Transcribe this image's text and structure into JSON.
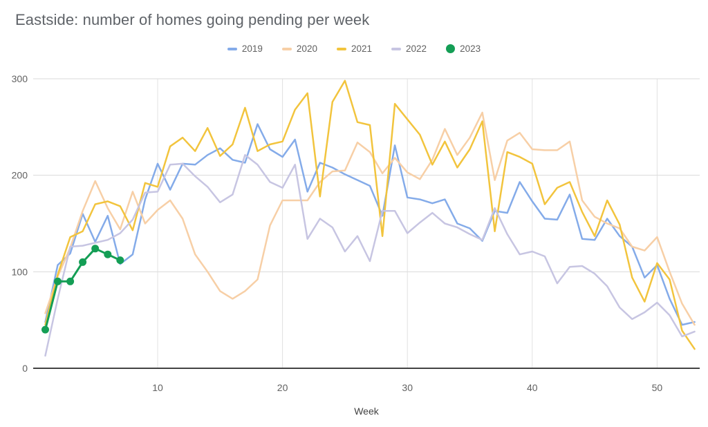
{
  "title": "Eastside: number of homes going pending per week",
  "legend": {
    "items": [
      {
        "label": "2019",
        "color": "#84abe9",
        "marker": "line"
      },
      {
        "label": "2020",
        "color": "#f7cfa6",
        "marker": "line"
      },
      {
        "label": "2021",
        "color": "#f2c43d",
        "marker": "line"
      },
      {
        "label": "2022",
        "color": "#c7c5e2",
        "marker": "line"
      },
      {
        "label": "2023",
        "color": "#149e55",
        "marker": "point"
      }
    ]
  },
  "chart_data": {
    "type": "line",
    "title": "Eastside: number of homes going pending per week",
    "xlabel": "Week",
    "ylabel": "",
    "x_ticks": [
      10,
      20,
      30,
      40,
      50
    ],
    "y_ticks": [
      0,
      100,
      200,
      300
    ],
    "xlim": [
      1,
      53.5
    ],
    "ylim": [
      0,
      300
    ],
    "grid": true,
    "legend_position": "top",
    "x_unit": "week number, x = index + 1",
    "series": [
      {
        "name": "2019",
        "color": "#84abe9",
        "point_markers": false,
        "values": [
          48,
          107,
          119,
          160,
          131,
          158,
          108,
          118,
          175,
          212,
          185,
          212,
          211,
          221,
          228,
          216,
          213,
          253,
          227,
          219,
          237,
          183,
          213,
          208,
          201,
          195,
          189,
          158,
          231,
          177,
          175,
          171,
          175,
          150,
          145,
          132,
          163,
          161,
          193,
          173,
          155,
          154,
          180,
          134,
          133,
          155,
          137,
          126,
          94,
          107,
          72,
          45,
          48
        ]
      },
      {
        "name": "2020",
        "color": "#f7cfa6",
        "point_markers": false,
        "values": [
          57,
          95,
          125,
          163,
          194,
          166,
          144,
          183,
          150,
          164,
          174,
          155,
          118,
          100,
          80,
          72,
          80,
          92,
          148,
          174,
          174,
          174,
          193,
          204,
          205,
          234,
          224,
          202,
          218,
          203,
          196,
          216,
          248,
          221,
          239,
          265,
          195,
          236,
          244,
          227,
          226,
          226,
          235,
          174,
          157,
          150,
          145,
          126,
          122,
          136,
          100,
          67,
          45
        ]
      },
      {
        "name": "2021",
        "color": "#f2c43d",
        "point_markers": false,
        "values": [
          45,
          97,
          136,
          142,
          170,
          173,
          168,
          143,
          192,
          188,
          230,
          239,
          225,
          249,
          220,
          232,
          270,
          225,
          232,
          235,
          268,
          285,
          178,
          276,
          298,
          255,
          252,
          137,
          274,
          258,
          242,
          211,
          235,
          208,
          227,
          256,
          142,
          224,
          219,
          212,
          170,
          187,
          193,
          162,
          137,
          174,
          149,
          94,
          69,
          109,
          92,
          39,
          20
        ]
      },
      {
        "name": "2022",
        "color": "#c7c5e2",
        "point_markers": false,
        "values": [
          13,
          72,
          126,
          127,
          130,
          133,
          140,
          154,
          182,
          183,
          211,
          212,
          199,
          188,
          172,
          180,
          221,
          211,
          193,
          187,
          211,
          134,
          155,
          146,
          121,
          137,
          111,
          163,
          163,
          140,
          151,
          161,
          150,
          146,
          139,
          133,
          166,
          139,
          118,
          121,
          116,
          88,
          105,
          106,
          98,
          85,
          63,
          51,
          58,
          68,
          55,
          33,
          38
        ]
      },
      {
        "name": "2023",
        "color": "#149e55",
        "point_markers": true,
        "values": [
          40,
          90,
          90,
          110,
          124,
          118,
          112
        ]
      }
    ]
  }
}
